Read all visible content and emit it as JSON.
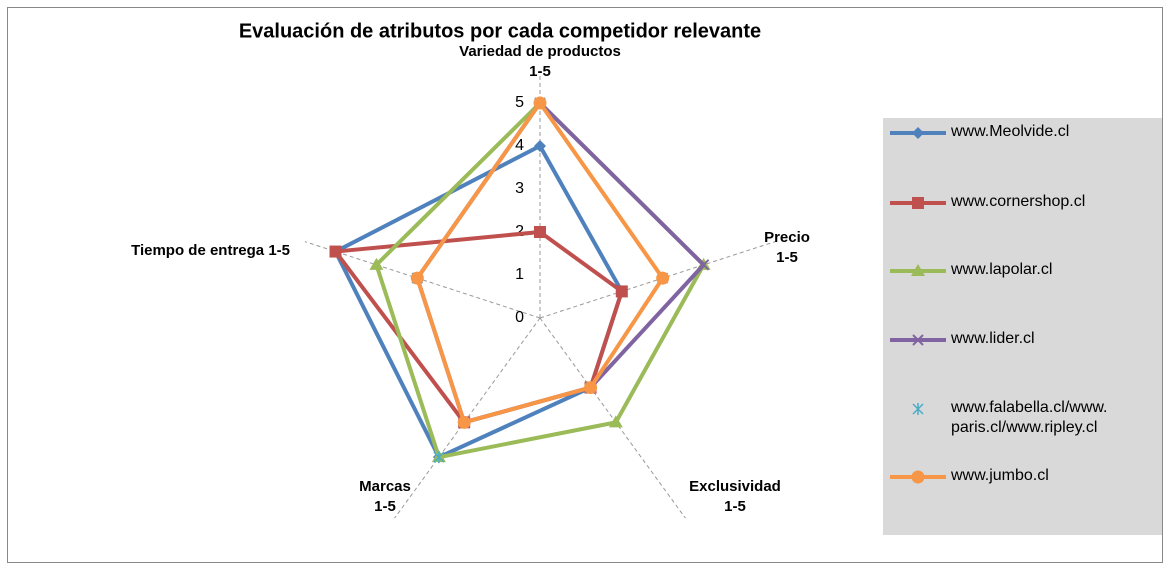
{
  "chart_data": {
    "type": "radar",
    "title": "Evaluación de atributos por cada competidor relevante",
    "categories": [
      [
        "Variedad de productos",
        "1-5"
      ],
      [
        "Precio",
        "1-5"
      ],
      [
        "Exclusividad",
        "1-5"
      ],
      [
        "Marcas",
        "1-5"
      ],
      [
        "Tiempo de entrega 1-5"
      ]
    ],
    "rlim": [
      0,
      5
    ],
    "rticks": [
      0,
      1,
      2,
      3,
      4,
      5
    ],
    "series": [
      {
        "name": "www.Meolvide.cl",
        "color": "#4f81bd",
        "marker": "diamond",
        "line": true,
        "values": [
          4,
          2,
          2,
          4,
          5
        ]
      },
      {
        "name": "www.cornershop.cl",
        "color": "#c0504d",
        "marker": "square",
        "line": true,
        "values": [
          2,
          2,
          2,
          3,
          5
        ]
      },
      {
        "name": "www.lapolar.cl",
        "color": "#9bbb59",
        "marker": "triangle",
        "line": true,
        "values": [
          5,
          4,
          3,
          4,
          4
        ]
      },
      {
        "name": "www.lider.cl",
        "color": "#8064a2",
        "marker": "x",
        "line": true,
        "values": [
          5,
          4,
          2,
          3,
          3
        ]
      },
      {
        "name": "www.falabella.cl/www.paris.cl/www.ripley.cl",
        "color": "#4bacc6",
        "marker": "star",
        "line": false,
        "values": [
          5,
          3,
          2,
          4,
          3
        ]
      },
      {
        "name": "www.jumbo.cl",
        "color": "#f79646",
        "marker": "circle",
        "line": true,
        "values": [
          5,
          3,
          2,
          3,
          3
        ]
      }
    ]
  }
}
